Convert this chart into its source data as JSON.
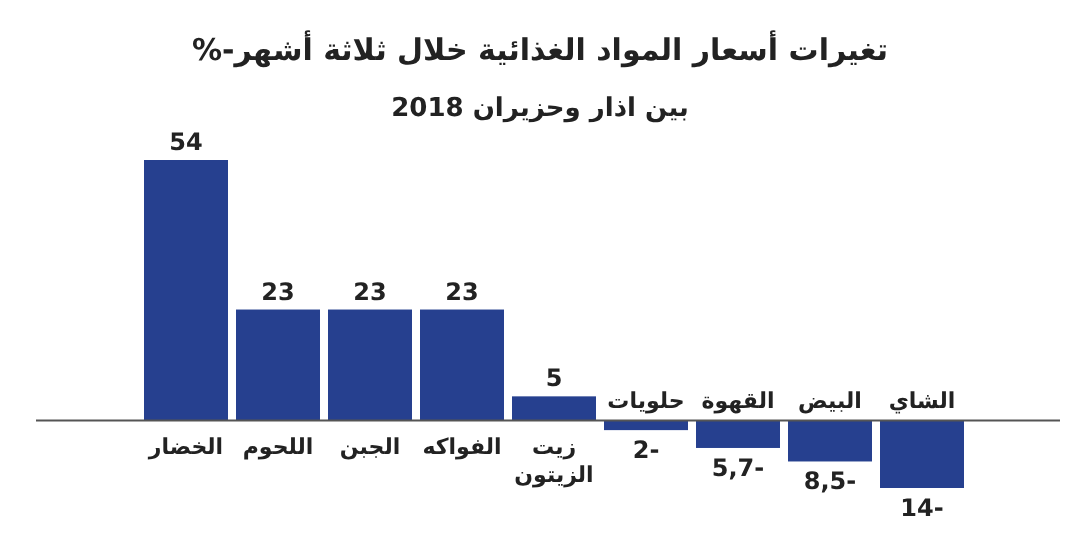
{
  "chart_data": {
    "type": "bar",
    "title": "تغيرات أسعار المواد الغذائية خلال ثلاثة أشهر-%",
    "subtitle": "بين اذار وحزيران 2018",
    "categories": [
      "الخضار",
      "اللحوم",
      "الجبن",
      "الفواكه",
      "زيت الزيتون",
      "حلويات",
      "القهوة",
      "البيض",
      "الشاي"
    ],
    "values": [
      54,
      23,
      23,
      23,
      5,
      -2,
      -5.7,
      -8.5,
      -14
    ],
    "value_labels": [
      "54",
      "23",
      "23",
      "23",
      "5",
      "-2",
      "-5,7",
      "-8,5",
      "-14"
    ],
    "color": "#26408f"
  }
}
